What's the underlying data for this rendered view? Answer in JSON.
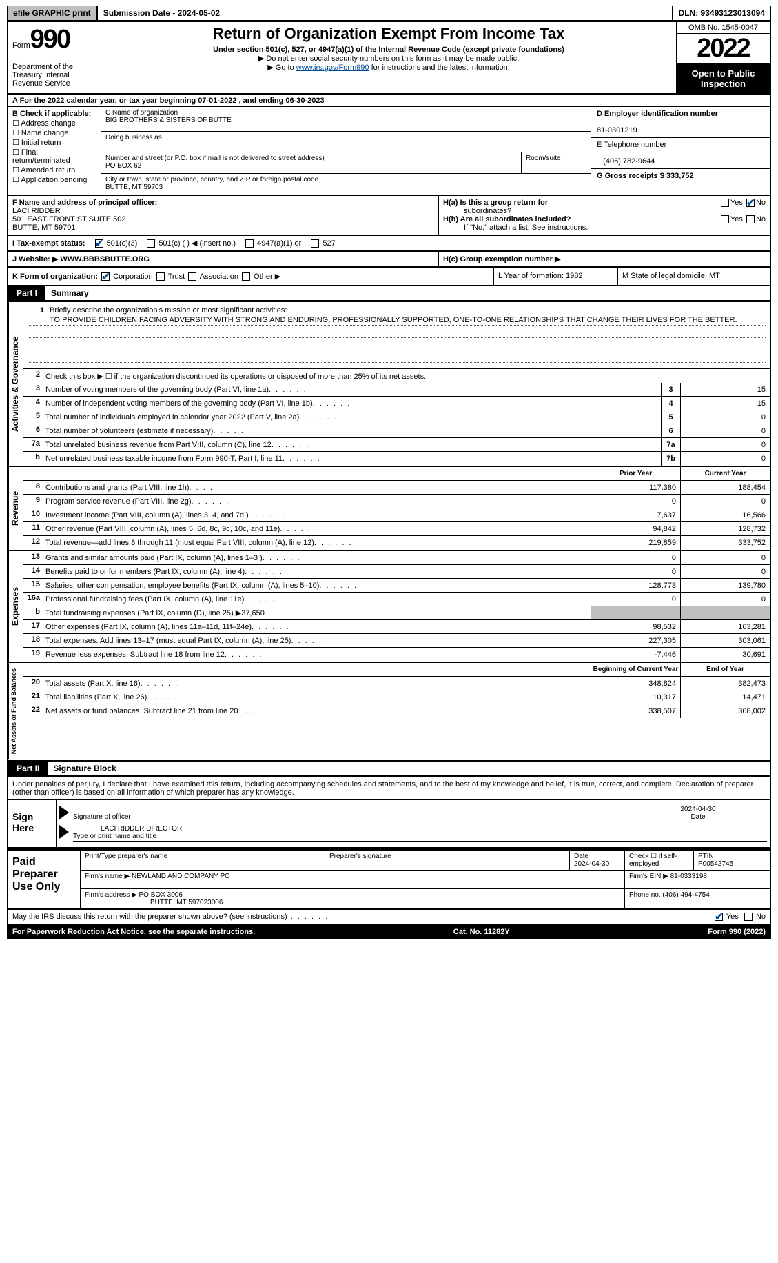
{
  "topbar": {
    "efile": "efile GRAPHIC print",
    "subdate": "Submission Date - 2024-05-02",
    "dln": "DLN: 93493123013094"
  },
  "header": {
    "form": "Form",
    "num": "990",
    "dept": "Department of the Treasury Internal Revenue Service",
    "title": "Return of Organization Exempt From Income Tax",
    "sub": "Under section 501(c), 527, or 4947(a)(1) of the Internal Revenue Code (except private foundations)",
    "note1": "▶ Do not enter social security numbers on this form as it may be made public.",
    "note2_pre": "▶ Go to ",
    "note2_link": "www.irs.gov/Form990",
    "note2_post": " for instructions and the latest information.",
    "omb": "OMB No. 1545-0047",
    "year": "2022",
    "otp": "Open to Public Inspection"
  },
  "sectionA": "A For the 2022 calendar year, or tax year beginning 07-01-2022   , and ending 06-30-2023",
  "sectionB": {
    "label": "B Check if applicable:",
    "opts": [
      "Address change",
      "Name change",
      "Initial return",
      "Final return/terminated",
      "Amended return",
      "Application pending"
    ],
    "c_label": "C Name of organization",
    "c_name": "BIG BROTHERS & SISTERS OF BUTTE",
    "dba": "Doing business as",
    "addr_label": "Number and street (or P.O. box if mail is not delivered to street address)",
    "addr": "PO BOX 62",
    "room": "Room/suite",
    "city_label": "City or town, state or province, country, and ZIP or foreign postal code",
    "city": "BUTTE, MT  59703",
    "d_label": "D Employer identification number",
    "d_val": "81-0301219",
    "e_label": "E Telephone number",
    "e_val": "(406) 782-9644",
    "g_label": "G Gross receipts $ 333,752"
  },
  "sectionFH": {
    "f_label": "F Name and address of principal officer:",
    "f_name": "LACI RIDDER",
    "f_addr1": "501 EAST FRONT ST SUITE 502",
    "f_addr2": "BUTTE, MT  59701",
    "ha_q": "H(a)  Is this a group return for",
    "ha_q2": "subordinates?",
    "hb_q": "H(b)  Are all subordinates included?",
    "hb_note": "If \"No,\" attach a list. See instructions.",
    "yes": "Yes",
    "no": "No"
  },
  "taxRow": {
    "label": "I  Tax-exempt status:",
    "o1": "501(c)(3)",
    "o2": "501(c) (  ) ◀ (insert no.)",
    "o3": "4947(a)(1) or",
    "o4": "527"
  },
  "webRow": {
    "label": "J  Website: ▶",
    "val": "WWW.BBBSBUTTE.ORG",
    "hc": "H(c)  Group exemption number ▶"
  },
  "kRow": {
    "label": "K Form of organization:",
    "corp": "Corporation",
    "trust": "Trust",
    "assoc": "Association",
    "other": "Other ▶",
    "l": "L Year of formation: 1982",
    "m": "M State of legal domicile: MT"
  },
  "part1": {
    "num": "Part I",
    "title": "Summary"
  },
  "summary": {
    "q1": "Briefly describe the organization's mission or most significant activities:",
    "mission": "TO PROVIDE CHILDREN FACING ADVERSITY WITH STRONG AND ENDURING, PROFESSIONALLY SUPPORTED, ONE-TO-ONE RELATIONSHIPS THAT CHANGE THEIR LIVES FOR THE BETTER.",
    "q2": "Check this box ▶ ☐  if the organization discontinued its operations or disposed of more than 25% of its net assets.",
    "rows_ag": [
      {
        "n": "3",
        "label": "Number of voting members of the governing body (Part VI, line 1a)",
        "box": "3",
        "val": "15"
      },
      {
        "n": "4",
        "label": "Number of independent voting members of the governing body (Part VI, line 1b)",
        "box": "4",
        "val": "15"
      },
      {
        "n": "5",
        "label": "Total number of individuals employed in calendar year 2022 (Part V, line 2a)",
        "box": "5",
        "val": "0"
      },
      {
        "n": "6",
        "label": "Total number of volunteers (estimate if necessary)",
        "box": "6",
        "val": "0"
      },
      {
        "n": "7a",
        "label": "Total unrelated business revenue from Part VIII, column (C), line 12",
        "box": "7a",
        "val": "0"
      },
      {
        "n": "b",
        "label": "Net unrelated business taxable income from Form 990-T, Part I, line 11",
        "box": "7b",
        "val": "0"
      }
    ],
    "prior_hdr": "Prior Year",
    "curr_hdr": "Current Year",
    "rows_rev": [
      {
        "n": "8",
        "label": "Contributions and grants (Part VIII, line 1h)",
        "prior": "117,380",
        "curr": "188,454"
      },
      {
        "n": "9",
        "label": "Program service revenue (Part VIII, line 2g)",
        "prior": "0",
        "curr": "0"
      },
      {
        "n": "10",
        "label": "Investment income (Part VIII, column (A), lines 3, 4, and 7d )",
        "prior": "7,637",
        "curr": "16,566"
      },
      {
        "n": "11",
        "label": "Other revenue (Part VIII, column (A), lines 5, 6d, 8c, 9c, 10c, and 11e)",
        "prior": "94,842",
        "curr": "128,732"
      },
      {
        "n": "12",
        "label": "Total revenue—add lines 8 through 11 (must equal Part VIII, column (A), line 12)",
        "prior": "219,859",
        "curr": "333,752"
      }
    ],
    "rows_exp": [
      {
        "n": "13",
        "label": "Grants and similar amounts paid (Part IX, column (A), lines 1–3 )",
        "prior": "0",
        "curr": "0"
      },
      {
        "n": "14",
        "label": "Benefits paid to or for members (Part IX, column (A), line 4)",
        "prior": "0",
        "curr": "0"
      },
      {
        "n": "15",
        "label": "Salaries, other compensation, employee benefits (Part IX, column (A), lines 5–10)",
        "prior": "128,773",
        "curr": "139,780"
      },
      {
        "n": "16a",
        "label": "Professional fundraising fees (Part IX, column (A), line 11e)",
        "prior": "0",
        "curr": "0"
      },
      {
        "n": "b",
        "label": "Total fundraising expenses (Part IX, column (D), line 25) ▶37,650",
        "shaded": true
      },
      {
        "n": "17",
        "label": "Other expenses (Part IX, column (A), lines 11a–11d, 11f–24e)",
        "prior": "98,532",
        "curr": "163,281"
      },
      {
        "n": "18",
        "label": "Total expenses. Add lines 13–17 (must equal Part IX, column (A), line 25)",
        "prior": "227,305",
        "curr": "303,061"
      },
      {
        "n": "19",
        "label": "Revenue less expenses. Subtract line 18 from line 12",
        "prior": "-7,446",
        "curr": "30,691"
      }
    ],
    "begin_hdr": "Beginning of Current Year",
    "end_hdr": "End of Year",
    "rows_na": [
      {
        "n": "20",
        "label": "Total assets (Part X, line 16)",
        "prior": "348,824",
        "curr": "382,473"
      },
      {
        "n": "21",
        "label": "Total liabilities (Part X, line 26)",
        "prior": "10,317",
        "curr": "14,471"
      },
      {
        "n": "22",
        "label": "Net assets or fund balances. Subtract line 21 from line 20",
        "prior": "338,507",
        "curr": "368,002"
      }
    ],
    "tab_ag": "Activities & Governance",
    "tab_rev": "Revenue",
    "tab_exp": "Expenses",
    "tab_na": "Net Assets or Fund Balances"
  },
  "part2": {
    "num": "Part II",
    "title": "Signature Block"
  },
  "sig": {
    "decl": "Under penalties of perjury, I declare that I have examined this return, including accompanying schedules and statements, and to the best of my knowledge and belief, it is true, correct, and complete. Declaration of preparer (other than officer) is based on all information of which preparer has any knowledge.",
    "here": "Sign Here",
    "sig_label": "Signature of officer",
    "date_label": "Date",
    "date_val": "2024-04-30",
    "name_val": "LACI RIDDER  DIRECTOR",
    "name_label": "Type or print name and title"
  },
  "paid": {
    "title": "Paid Preparer Use Only",
    "h1": "Print/Type preparer's name",
    "h2": "Preparer's signature",
    "h3": "Date",
    "h3v": "2024-04-30",
    "h4": "Check ☐ if self-employed",
    "h5": "PTIN",
    "h5v": "P00542745",
    "firm_label": "Firm's name    ▶",
    "firm": "NEWLAND AND COMPANY PC",
    "ein_label": "Firm's EIN ▶",
    "ein": "81-0333198",
    "addr_label": "Firm's address ▶",
    "addr1": "PO BOX 3006",
    "addr2": "BUTTE, MT  597023006",
    "phone_label": "Phone no.",
    "phone": "(406) 494-4754"
  },
  "discuss": {
    "q": "May the IRS discuss this return with the preparer shown above? (see instructions)",
    "yes": "Yes",
    "no": "No"
  },
  "footer": {
    "l": "For Paperwork Reduction Act Notice, see the separate instructions.",
    "m": "Cat. No. 11282Y",
    "r": "Form 990 (2022)"
  },
  "colors": {
    "link": "#004b98",
    "gray_btn": "#bfbfbf"
  }
}
